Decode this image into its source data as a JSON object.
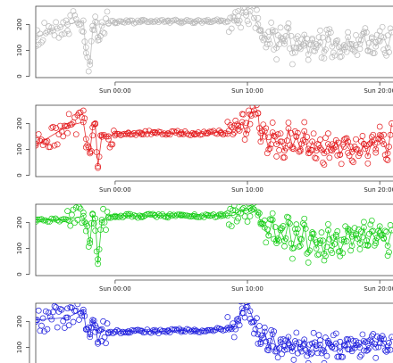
{
  "chart_data": [
    {
      "type": "line",
      "color": "#b8b8b8",
      "y_ticks": [
        "0",
        "100",
        "200"
      ],
      "x_ticks": [
        "Sun 00:00",
        "Sun 10:00",
        "Sun 20:00"
      ],
      "x_hours": [
        0,
        10,
        20
      ],
      "xlim_hours": [
        -6,
        21
      ],
      "ylim": [
        -5,
        270
      ],
      "series": [
        {
          "x": [
            -6,
            -3.6,
            -2.4,
            -2.2,
            -1.9,
            -1.7,
            -1.5,
            -1.3,
            -1,
            -0.5,
            0,
            1,
            2,
            3,
            4,
            5,
            6,
            7,
            8,
            8.5,
            9,
            9.3,
            9.6,
            9.9,
            10.2,
            10.5,
            10.8,
            11,
            11.3,
            11.6,
            11.9,
            12.2,
            12.5,
            12.8,
            13.1,
            13.4,
            13.7,
            14,
            14.3,
            14.6,
            14.9,
            15.2,
            15.5,
            15.8,
            16.1,
            16.4,
            16.7,
            17,
            17.3,
            17.6,
            17.9,
            18.2,
            18.5,
            18.8,
            19.1,
            19.4,
            19.7,
            20,
            20.3,
            20.6,
            20.9
          ],
          "y": [
            150,
            200,
            215,
            90,
            45,
            180,
            210,
            150,
            195,
            205,
            208,
            210,
            212,
            211,
            213,
            212,
            210,
            211,
            213,
            212,
            215,
            205,
            245,
            235,
            250,
            225,
            200,
            175,
            160,
            140,
            170,
            110,
            150,
            125,
            185,
            90,
            145,
            115,
            160,
            85,
            140,
            110,
            130,
            95,
            165,
            115,
            135,
            95,
            120,
            150,
            105,
            120,
            125,
            165,
            100,
            145,
            115,
            135,
            150,
            110,
            170
          ]
        }
      ]
    },
    {
      "type": "line",
      "color": "#e3191c",
      "y_ticks": [
        "0",
        "100",
        "200"
      ],
      "x_ticks": [
        "Sun 00:00",
        "Sun 10:00",
        "Sun 20:00"
      ],
      "x_hours": [
        0,
        10,
        20
      ],
      "xlim_hours": [
        -6,
        21
      ],
      "ylim": [
        -5,
        270
      ],
      "series": [
        {
          "x": [
            -6,
            -3.6,
            -2.4,
            -2.2,
            -1.9,
            -1.7,
            -1.5,
            -1.3,
            -1,
            -0.5,
            0,
            1,
            2,
            3,
            4,
            5,
            6,
            7,
            8,
            8.5,
            9,
            9.3,
            9.6,
            9.9,
            10.2,
            10.5,
            10.8,
            11,
            11.3,
            11.6,
            11.9,
            12.2,
            12.5,
            12.8,
            13.1,
            13.4,
            13.7,
            14,
            14.3,
            14.6,
            14.9,
            15.2,
            15.5,
            15.8,
            16.1,
            16.4,
            16.7,
            17,
            17.3,
            17.6,
            17.9,
            18.2,
            18.5,
            18.8,
            19.1,
            19.4,
            19.7,
            20,
            20.3,
            20.6,
            20.9
          ],
          "y": [
            115,
            190,
            205,
            140,
            90,
            185,
            200,
            35,
            155,
            150,
            160,
            162,
            163,
            166,
            162,
            165,
            160,
            163,
            166,
            160,
            165,
            190,
            205,
            160,
            235,
            250,
            240,
            130,
            170,
            100,
            165,
            120,
            130,
            95,
            180,
            110,
            150,
            100,
            170,
            85,
            130,
            95,
            105,
            85,
            120,
            95,
            135,
            80,
            110,
            130,
            90,
            100,
            85,
            120,
            75,
            130,
            100,
            155,
            120,
            85,
            200
          ]
        }
      ]
    },
    {
      "type": "line",
      "color": "#11cc11",
      "y_ticks": [
        "0",
        "100",
        "200"
      ],
      "x_ticks": [
        "Sun 00:00",
        "Sun 10:00",
        "Sun 20:00"
      ],
      "x_hours": [
        0,
        10,
        20
      ],
      "xlim_hours": [
        -6,
        21
      ],
      "ylim": [
        -5,
        270
      ],
      "series": [
        {
          "x": [
            -6,
            -3.6,
            -2.4,
            -2.2,
            -1.9,
            -1.7,
            -1.5,
            -1.3,
            -1,
            -0.5,
            0,
            1,
            2,
            3,
            4,
            5,
            6,
            7,
            8,
            8.5,
            9,
            9.3,
            9.6,
            9.9,
            10.2,
            10.5,
            10.8,
            11,
            11.3,
            11.6,
            11.9,
            12.2,
            12.5,
            12.8,
            13.1,
            13.4,
            13.7,
            14,
            14.3,
            14.6,
            14.9,
            15.2,
            15.5,
            15.8,
            16.1,
            16.4,
            16.7,
            17,
            17.3,
            17.6,
            17.9,
            18.2,
            18.5,
            18.8,
            19.1,
            19.4,
            19.7,
            20,
            20.3,
            20.6,
            20.9
          ],
          "y": [
            210,
            210,
            225,
            195,
            120,
            230,
            215,
            40,
            210,
            222,
            225,
            226,
            224,
            227,
            225,
            226,
            224,
            227,
            225,
            226,
            228,
            240,
            250,
            245,
            255,
            250,
            240,
            200,
            180,
            150,
            210,
            120,
            170,
            130,
            200,
            100,
            160,
            110,
            190,
            85,
            155,
            100,
            130,
            80,
            170,
            110,
            145,
            90,
            125,
            175,
            110,
            150,
            120,
            180,
            110,
            165,
            130,
            185,
            140,
            110,
            170
          ]
        }
      ]
    },
    {
      "type": "line",
      "color": "#1a1adc",
      "y_ticks": [
        "100",
        "200"
      ],
      "x_ticks": [],
      "x_hours": [],
      "xlim_hours": [
        -6,
        21
      ],
      "ylim": [
        -5,
        270
      ],
      "series": [
        {
          "x": [
            -6,
            -3.6,
            -2.4,
            -2.2,
            -1.9,
            -1.7,
            -1.5,
            -1.3,
            -1,
            -0.5,
            0,
            1,
            2,
            3,
            4,
            5,
            6,
            7,
            8,
            8.5,
            9,
            9.3,
            9.6,
            9.9,
            10.2,
            10.5,
            10.8,
            11,
            11.3,
            11.6,
            11.9,
            12.2,
            12.5,
            12.8,
            13.1,
            13.4,
            13.7,
            14,
            14.3,
            14.6,
            14.9,
            15.2,
            15.5,
            15.8,
            16.1,
            16.4,
            16.7,
            17,
            17.3,
            17.6,
            17.9,
            18.2,
            18.5,
            18.8,
            19.1,
            19.4,
            19.7,
            20,
            20.3,
            20.6,
            20.9
          ],
          "y": [
            205,
            215,
            245,
            170,
            140,
            205,
            185,
            120,
            170,
            158,
            160,
            162,
            164,
            160,
            163,
            165,
            162,
            166,
            170,
            175,
            180,
            210,
            250,
            255,
            240,
            200,
            150,
            120,
            160,
            100,
            150,
            95,
            120,
            90,
            140,
            85,
            115,
            100,
            130,
            80,
            115,
            95,
            110,
            85,
            125,
            100,
            115,
            85,
            105,
            130,
            95,
            110,
            100,
            125,
            90,
            120,
            100,
            135,
            115,
            90,
            140
          ]
        }
      ]
    }
  ]
}
